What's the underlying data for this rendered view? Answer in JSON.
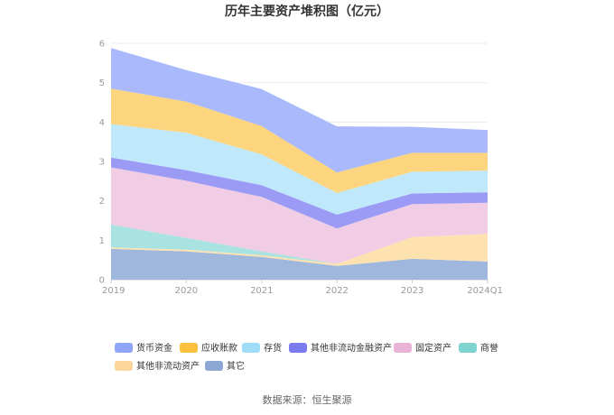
{
  "chart_data": {
    "type": "area",
    "stacked": true,
    "title": "历年主要资产堆积图（亿元）",
    "categories": [
      "2019",
      "2020",
      "2021",
      "2022",
      "2023",
      "2024Q1"
    ],
    "ylim": [
      0,
      6
    ],
    "yticks": [
      "0",
      "1",
      "2",
      "3",
      "4",
      "5",
      "6"
    ],
    "grid": true,
    "legend_position": "bottom",
    "series": [
      {
        "name": "其它",
        "color": "#9fb7dd",
        "values": [
          0.78,
          0.72,
          0.58,
          0.35,
          0.53,
          0.46
        ]
      },
      {
        "name": "其他非流动资产",
        "color": "#fde2b0",
        "values": [
          0.04,
          0.04,
          0.04,
          0.05,
          0.55,
          0.7
        ]
      },
      {
        "name": "商誉",
        "color": "#a8e3e1",
        "values": [
          0.58,
          0.3,
          0.1,
          0.0,
          0.0,
          0.0
        ]
      },
      {
        "name": "固定资产",
        "color": "#f0cde4",
        "values": [
          1.45,
          1.45,
          1.38,
          0.9,
          0.84,
          0.79
        ]
      },
      {
        "name": "其他非流动金融资产",
        "color": "#9b9bf5",
        "values": [
          0.25,
          0.27,
          0.3,
          0.35,
          0.27,
          0.27
        ]
      },
      {
        "name": "存货",
        "color": "#c0e8fb",
        "values": [
          0.85,
          0.95,
          0.78,
          0.55,
          0.55,
          0.55
        ]
      },
      {
        "name": "应收账款",
        "color": "#fdd57e",
        "values": [
          0.9,
          0.79,
          0.72,
          0.52,
          0.48,
          0.45
        ]
      },
      {
        "name": "货币资金",
        "color": "#a9b9fb",
        "values": [
          1.03,
          0.8,
          0.94,
          1.17,
          0.66,
          0.58
        ]
      }
    ],
    "legend_order": [
      "货币资金",
      "应收账款",
      "存货",
      "其他非流动金融资产",
      "固定资产",
      "商誉",
      "其他非流动资产",
      "其它"
    ],
    "legend_colors": {
      "货币资金": "#8fa5f7",
      "应收账款": "#fbc13e",
      "存货": "#9fdcf7",
      "其他非流动金融资产": "#7b7bf0",
      "固定资产": "#e8b3d7",
      "商誉": "#7fd3d1",
      "其他非流动资产": "#fcd59b",
      "其它": "#8ea8d6"
    }
  },
  "source_text": "数据来源：恒生聚源"
}
